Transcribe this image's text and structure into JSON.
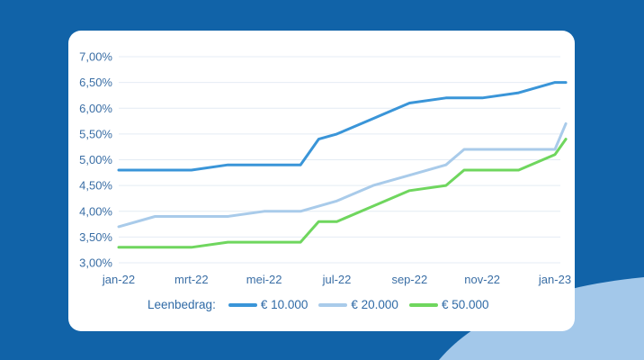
{
  "colors": {
    "background": "#1163a8",
    "card": "#ffffff",
    "wave": "#a3c8ea",
    "series_10000": "#3a95d8",
    "series_20000": "#a9cbea",
    "series_50000": "#6fd65e",
    "axis_text": "#3a6ea5",
    "grid": "#e4ecf4"
  },
  "chart_data": {
    "type": "line",
    "title": "",
    "xlabel": "",
    "ylabel": "",
    "grid": "horizontal",
    "legend_placement": "bottom",
    "legend_title": "Leenbedrag:",
    "ylim": [
      3.0,
      7.0
    ],
    "yticks": [
      3.0,
      3.5,
      4.0,
      4.5,
      5.0,
      5.5,
      6.0,
      6.5,
      7.0
    ],
    "ytick_labels": [
      "3,00%",
      "3,50%",
      "4,00%",
      "4,50%",
      "5,00%",
      "5,50%",
      "6,00%",
      "6,50%",
      "7,00%"
    ],
    "xlim": [
      0,
      12
    ],
    "xticks": [
      0,
      2,
      4,
      6,
      8,
      10,
      12
    ],
    "xtick_labels": [
      "jan-22",
      "mrt-22",
      "mei-22",
      "jul-22",
      "sep-22",
      "nov-22",
      "jan-23"
    ],
    "series": [
      {
        "name": "€ 10.000",
        "color": "#3a95d8",
        "points": [
          [
            0,
            4.8
          ],
          [
            1,
            4.8
          ],
          [
            2,
            4.8
          ],
          [
            3,
            4.9
          ],
          [
            4,
            4.9
          ],
          [
            5,
            4.9
          ],
          [
            5.5,
            5.4
          ],
          [
            6,
            5.5
          ],
          [
            7,
            5.8
          ],
          [
            8,
            6.1
          ],
          [
            9,
            6.2
          ],
          [
            10,
            6.2
          ],
          [
            11,
            6.3
          ],
          [
            12,
            6.5
          ],
          [
            12.3,
            6.5
          ]
        ]
      },
      {
        "name": "€ 20.000",
        "color": "#a9cbea",
        "points": [
          [
            0,
            3.7
          ],
          [
            1,
            3.9
          ],
          [
            2,
            3.9
          ],
          [
            3,
            3.9
          ],
          [
            4,
            4.0
          ],
          [
            5,
            4.0
          ],
          [
            6,
            4.2
          ],
          [
            7,
            4.5
          ],
          [
            8,
            4.7
          ],
          [
            9,
            4.9
          ],
          [
            9.5,
            5.2
          ],
          [
            10,
            5.2
          ],
          [
            11,
            5.2
          ],
          [
            12,
            5.2
          ],
          [
            12.3,
            5.7
          ]
        ]
      },
      {
        "name": "€ 50.000",
        "color": "#6fd65e",
        "points": [
          [
            0,
            3.3
          ],
          [
            1,
            3.3
          ],
          [
            2,
            3.3
          ],
          [
            3,
            3.4
          ],
          [
            4,
            3.4
          ],
          [
            5,
            3.4
          ],
          [
            5.5,
            3.8
          ],
          [
            6,
            3.8
          ],
          [
            7,
            4.1
          ],
          [
            8,
            4.4
          ],
          [
            9,
            4.5
          ],
          [
            9.5,
            4.8
          ],
          [
            10,
            4.8
          ],
          [
            11,
            4.8
          ],
          [
            12,
            5.1
          ],
          [
            12.3,
            5.4
          ]
        ]
      }
    ]
  }
}
